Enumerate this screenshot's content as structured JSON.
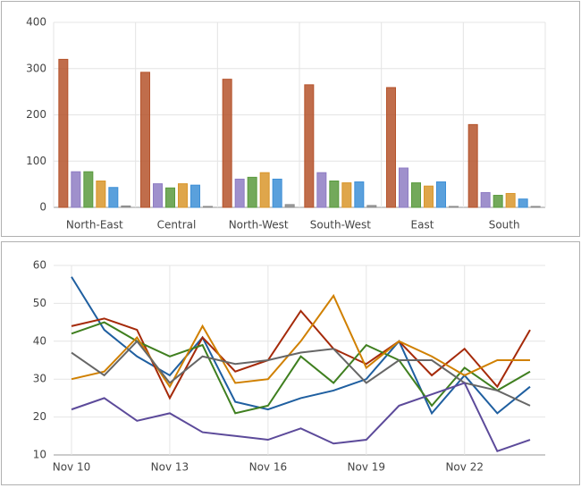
{
  "chart_data": [
    {
      "type": "bar",
      "categories": [
        "North-East",
        "Central",
        "North-West",
        "South-West",
        "East",
        "South"
      ],
      "series": [
        {
          "color": "#b5532b",
          "values": [
            320,
            292,
            277,
            265,
            259,
            179
          ]
        },
        {
          "color": "#8e7cc3",
          "values": [
            77,
            51,
            61,
            75,
            85,
            32
          ]
        },
        {
          "color": "#5a9a3e",
          "values": [
            77,
            42,
            65,
            57,
            53,
            26
          ]
        },
        {
          "color": "#d9962c",
          "values": [
            57,
            51,
            75,
            53,
            46,
            30
          ]
        },
        {
          "color": "#3d8fd6",
          "values": [
            43,
            48,
            61,
            55,
            55,
            18
          ]
        },
        {
          "color": "#8a8a8a",
          "values": [
            3,
            2,
            6,
            4,
            2,
            2
          ]
        }
      ],
      "ylim": [
        0,
        400
      ],
      "yticks": [
        0,
        100,
        200,
        300,
        400
      ],
      "grid": true
    },
    {
      "type": "line",
      "categories": [
        "Nov 10",
        null,
        null,
        "Nov 13",
        null,
        null,
        "Nov 16",
        null,
        null,
        "Nov 19",
        null,
        null,
        "Nov 22",
        null,
        null
      ],
      "series": [
        {
          "color": "#1f5fa0",
          "values": [
            57,
            43,
            36,
            31,
            41,
            24,
            22,
            25,
            27,
            30,
            40,
            21,
            31,
            21,
            28
          ]
        },
        {
          "color": "#a52a0a",
          "values": [
            44,
            46,
            43,
            25,
            41,
            32,
            35,
            48,
            38,
            34,
            40,
            31,
            38,
            28,
            43
          ]
        },
        {
          "color": "#3f7f1f",
          "values": [
            42,
            45,
            40,
            36,
            39,
            21,
            23,
            36,
            29,
            39,
            35,
            23,
            33,
            27,
            32
          ]
        },
        {
          "color": "#d08000",
          "values": [
            30,
            32,
            41,
            28,
            44,
            29,
            30,
            40,
            52,
            33,
            40,
            36,
            31,
            35,
            35
          ]
        },
        {
          "color": "#666666",
          "values": [
            37,
            31,
            40,
            29,
            36,
            34,
            35,
            37,
            38,
            29,
            35,
            35,
            29,
            27,
            23
          ]
        },
        {
          "color": "#5c4a9a",
          "values": [
            22,
            25,
            19,
            21,
            16,
            15,
            14,
            17,
            13,
            14,
            23,
            26,
            29,
            11,
            14
          ]
        }
      ],
      "ylim": [
        10,
        60
      ],
      "yticks": [
        10,
        20,
        30,
        40,
        50,
        60
      ],
      "grid": true
    }
  ]
}
